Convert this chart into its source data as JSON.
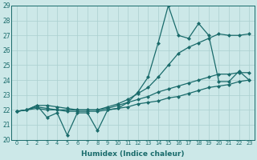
{
  "xlabel": "Humidex (Indice chaleur)",
  "ylabel": "",
  "xlim": [
    -0.5,
    23.5
  ],
  "ylim": [
    20,
    29
  ],
  "yticks": [
    20,
    21,
    22,
    23,
    24,
    25,
    26,
    27,
    28,
    29
  ],
  "xticks": [
    0,
    1,
    2,
    3,
    4,
    5,
    6,
    7,
    8,
    9,
    10,
    11,
    12,
    13,
    14,
    15,
    16,
    17,
    18,
    19,
    20,
    21,
    22,
    23
  ],
  "bg_color": "#cce8e8",
  "grid_color": "#aacfcf",
  "line_color": "#1a6b6b",
  "line1": [
    21.9,
    22.0,
    22.3,
    21.5,
    21.8,
    20.3,
    21.8,
    21.8,
    20.6,
    22.0,
    22.1,
    22.5,
    23.2,
    24.2,
    26.5,
    29.0,
    27.0,
    26.8,
    27.8,
    27.0,
    23.9,
    23.9,
    24.6,
    24.0
  ],
  "line2": [
    21.9,
    22.0,
    22.3,
    22.3,
    22.2,
    22.1,
    22.0,
    22.0,
    22.0,
    22.2,
    22.4,
    22.7,
    23.1,
    23.5,
    24.2,
    25.0,
    25.8,
    26.2,
    26.5,
    26.8,
    27.1,
    27.0,
    27.0,
    27.1
  ],
  "line3": [
    21.9,
    22.0,
    22.2,
    22.1,
    22.0,
    22.0,
    22.0,
    22.0,
    22.0,
    22.1,
    22.3,
    22.5,
    22.7,
    22.9,
    23.2,
    23.4,
    23.6,
    23.8,
    24.0,
    24.2,
    24.4,
    24.4,
    24.5,
    24.5
  ],
  "line4": [
    21.9,
    22.0,
    22.1,
    22.0,
    22.0,
    21.9,
    21.9,
    21.9,
    21.9,
    22.0,
    22.1,
    22.2,
    22.4,
    22.5,
    22.6,
    22.8,
    22.9,
    23.1,
    23.3,
    23.5,
    23.6,
    23.7,
    23.9,
    24.0
  ]
}
